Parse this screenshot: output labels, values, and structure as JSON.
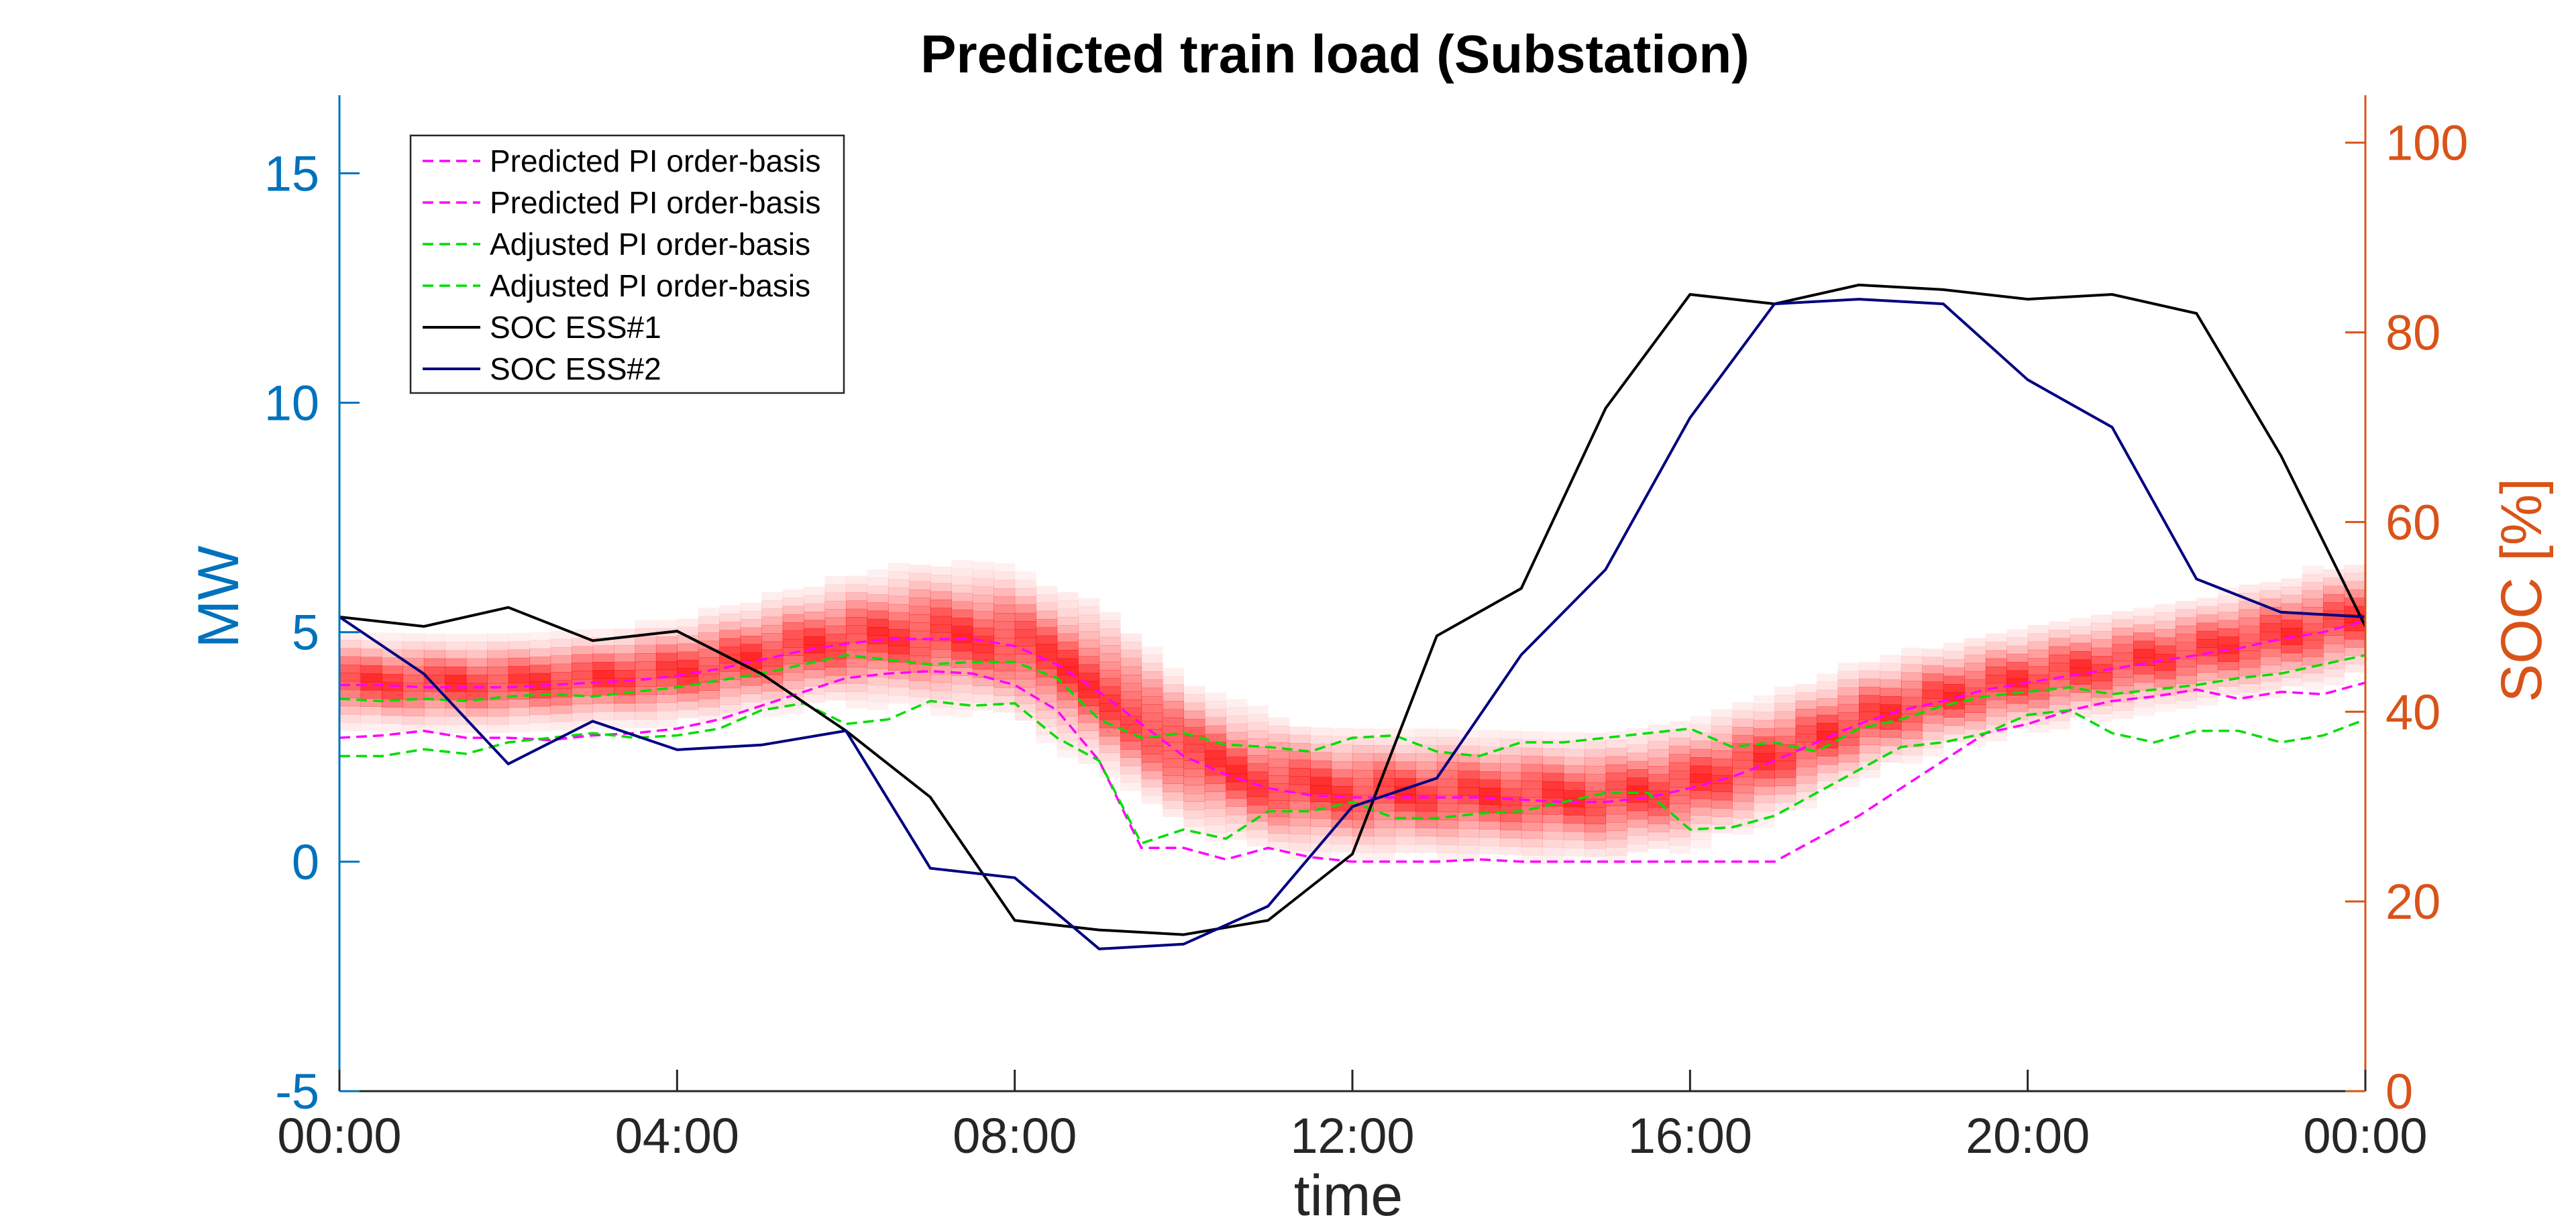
{
  "chart_data": {
    "type": "line",
    "title": "Predicted train load (Substation)",
    "xlabel": "time",
    "ylabel_left": "MW",
    "ylabel_right": "SOC [%]",
    "x_ticks": [
      "00:00",
      "04:00",
      "08:00",
      "12:00",
      "16:00",
      "20:00",
      "00:00"
    ],
    "x_range_hours": [
      0,
      24
    ],
    "ylim_left": [
      -5,
      16.7
    ],
    "yticks_left": [
      -5,
      0,
      5,
      10,
      15
    ],
    "ylim_right": [
      0,
      105
    ],
    "yticks_right": [
      0,
      20,
      40,
      60,
      80,
      100
    ],
    "grid": false,
    "legend_position": "top-left",
    "colors": {
      "left_axis": "#0072BD",
      "right_axis": "#D95319",
      "predicted": "#FF00FF",
      "adjusted": "#00DD00",
      "soc1": "#000000",
      "soc2": "#000080",
      "band": "#FF0000"
    },
    "series": [
      {
        "name": "Predicted PI order-basis",
        "axis": "left",
        "style": "dashed",
        "color": "#FF00FF",
        "x": [
          0,
          0.5,
          1,
          1.5,
          2,
          2.5,
          3,
          3.5,
          4,
          4.5,
          5,
          5.5,
          6,
          6.5,
          7,
          7.5,
          8,
          8.5,
          9,
          9.5,
          10,
          10.5,
          11,
          11.5,
          12,
          12.5,
          13,
          13.5,
          14,
          14.5,
          15,
          15.5,
          16,
          16.5,
          17,
          17.5,
          18,
          18.5,
          19,
          19.5,
          20,
          20.5,
          21,
          21.5,
          22,
          22.5,
          23,
          23.5,
          24
        ],
        "y": [
          3.85,
          3.85,
          3.8,
          3.8,
          3.8,
          3.85,
          3.9,
          3.95,
          4.05,
          4.2,
          4.4,
          4.6,
          4.75,
          4.85,
          4.85,
          4.85,
          4.7,
          4.3,
          3.7,
          3.0,
          2.3,
          1.9,
          1.6,
          1.45,
          1.4,
          1.4,
          1.4,
          1.4,
          1.35,
          1.3,
          1.3,
          1.4,
          1.6,
          1.85,
          2.2,
          2.6,
          3.0,
          3.3,
          3.5,
          3.75,
          3.9,
          4.05,
          4.2,
          4.35,
          4.5,
          4.65,
          4.85,
          5.0,
          5.25
        ]
      },
      {
        "name": "Predicted PI order-basis",
        "axis": "left",
        "style": "dashed",
        "color": "#FF00FF",
        "x": [
          0,
          0.5,
          1,
          1.5,
          2,
          2.5,
          3,
          3.5,
          4,
          4.5,
          5,
          5.5,
          6,
          6.5,
          7,
          7.5,
          8,
          8.5,
          9,
          9.5,
          10,
          10.5,
          11,
          11.5,
          12,
          12.5,
          13,
          13.5,
          14,
          14.5,
          15,
          15.5,
          16,
          16.5,
          17,
          17.5,
          18,
          18.5,
          19,
          19.5,
          20,
          20.5,
          21,
          21.5,
          22,
          22.5,
          23,
          23.5,
          24
        ],
        "y": [
          2.7,
          2.75,
          2.85,
          2.7,
          2.7,
          2.65,
          2.75,
          2.8,
          2.9,
          3.1,
          3.4,
          3.7,
          4.0,
          4.1,
          4.15,
          4.1,
          3.85,
          3.3,
          2.2,
          0.3,
          0.3,
          0.05,
          0.3,
          0.1,
          0.0,
          0.0,
          0.0,
          0.05,
          0.0,
          0.0,
          0.0,
          0.0,
          0.0,
          0.0,
          0.0,
          0.5,
          1.0,
          1.6,
          2.2,
          2.8,
          3.0,
          3.3,
          3.5,
          3.6,
          3.75,
          3.55,
          3.7,
          3.65,
          3.9
        ]
      },
      {
        "name": "Adjusted PI order-basis",
        "axis": "left",
        "style": "dashed",
        "color": "#00DD00",
        "x": [
          0,
          0.5,
          1,
          1.5,
          2,
          2.5,
          3,
          3.5,
          4,
          4.5,
          5,
          5.5,
          6,
          6.5,
          7,
          7.5,
          8,
          8.5,
          9,
          9.5,
          10,
          10.5,
          11,
          11.5,
          12,
          12.5,
          13,
          13.5,
          14,
          14.5,
          15,
          15.5,
          16,
          16.5,
          17,
          17.5,
          18,
          18.5,
          19,
          19.5,
          20,
          20.5,
          21,
          21.5,
          22,
          22.5,
          23,
          23.5,
          24
        ],
        "y": [
          3.55,
          3.5,
          3.55,
          3.5,
          3.6,
          3.65,
          3.6,
          3.7,
          3.8,
          3.95,
          4.1,
          4.3,
          4.5,
          4.4,
          4.3,
          4.35,
          4.35,
          4.0,
          3.1,
          2.7,
          2.8,
          2.55,
          2.5,
          2.4,
          2.7,
          2.75,
          2.4,
          2.3,
          2.6,
          2.6,
          2.7,
          2.8,
          2.9,
          2.5,
          2.6,
          2.4,
          2.9,
          3.1,
          3.4,
          3.6,
          3.7,
          3.8,
          3.65,
          3.75,
          3.85,
          4.0,
          4.1,
          4.3,
          4.5
        ]
      },
      {
        "name": "Adjusted PI order-basis",
        "axis": "left",
        "style": "dashed",
        "color": "#00DD00",
        "x": [
          0,
          0.5,
          1,
          1.5,
          2,
          2.5,
          3,
          3.5,
          4,
          4.5,
          5,
          5.5,
          6,
          6.5,
          7,
          7.5,
          8,
          8.5,
          9,
          9.5,
          10,
          10.5,
          11,
          11.5,
          12,
          12.5,
          13,
          13.5,
          14,
          14.5,
          15,
          15.5,
          16,
          16.5,
          17,
          17.5,
          18,
          18.5,
          19,
          19.5,
          20,
          20.5,
          21,
          21.5,
          22,
          22.5,
          23,
          23.5,
          24
        ],
        "y": [
          2.3,
          2.3,
          2.45,
          2.35,
          2.6,
          2.7,
          2.8,
          2.7,
          2.75,
          2.9,
          3.3,
          3.45,
          3.0,
          3.1,
          3.5,
          3.4,
          3.45,
          2.7,
          2.2,
          0.4,
          0.7,
          0.5,
          1.1,
          1.1,
          1.3,
          0.95,
          0.95,
          1.05,
          1.1,
          1.3,
          1.5,
          1.5,
          0.7,
          0.75,
          1.0,
          1.5,
          2.0,
          2.5,
          2.6,
          2.8,
          3.2,
          3.3,
          2.8,
          2.6,
          2.85,
          2.85,
          2.6,
          2.75,
          3.1
        ]
      },
      {
        "name": "SOC ESS#1",
        "axis": "right",
        "style": "solid",
        "color": "#000000",
        "x": [
          0,
          1,
          2,
          3,
          4,
          5,
          6,
          7,
          8,
          9,
          10,
          11,
          12,
          13,
          14,
          15,
          16,
          17,
          18,
          19,
          20,
          21,
          22,
          23,
          24
        ],
        "y": [
          50,
          49,
          51,
          47.5,
          48.5,
          44,
          38,
          31,
          18,
          17,
          16.5,
          18,
          25,
          48,
          53,
          72,
          84,
          83,
          85,
          84.5,
          83.5,
          84,
          82,
          67,
          49
        ]
      },
      {
        "name": "SOC ESS#2",
        "axis": "right",
        "style": "solid",
        "color": "#000080",
        "x": [
          0,
          1,
          2,
          3,
          4,
          5,
          6,
          7,
          8,
          9,
          10,
          11,
          12,
          13,
          14,
          15,
          16,
          17,
          18,
          19,
          20,
          21,
          22,
          23,
          24
        ],
        "y": [
          50,
          44,
          34.5,
          39,
          36,
          36.5,
          38,
          23.5,
          22.5,
          15,
          15.5,
          19.5,
          30,
          33,
          46,
          55,
          71,
          83,
          83.5,
          83,
          75,
          70,
          54,
          50.5,
          50
        ]
      }
    ],
    "legend": [
      "Predicted PI order-basis",
      "Predicted PI order-basis",
      "Adjusted PI order-basis",
      "Adjusted PI order-basis",
      "SOC ESS#1",
      "SOC ESS#2"
    ],
    "heatmap_band": {
      "axis": "left",
      "color": "#FF0000",
      "x": [
        0,
        1,
        2,
        3,
        4,
        5,
        6,
        7,
        8,
        9,
        10,
        11,
        12,
        13,
        14,
        15,
        16,
        17,
        18,
        19,
        20,
        21,
        22,
        23,
        24
      ],
      "center": [
        3.85,
        3.8,
        3.8,
        3.9,
        4.05,
        4.4,
        4.75,
        4.85,
        4.7,
        3.7,
        2.3,
        1.6,
        1.4,
        1.4,
        1.35,
        1.3,
        1.6,
        2.2,
        3.0,
        3.5,
        3.9,
        4.2,
        4.5,
        4.85,
        5.25
      ],
      "spread": [
        0.45,
        0.45,
        0.45,
        0.45,
        0.5,
        0.55,
        0.6,
        0.7,
        0.7,
        0.8,
        0.7,
        0.65,
        0.6,
        0.6,
        0.6,
        0.6,
        0.6,
        0.6,
        0.55,
        0.5,
        0.5,
        0.5,
        0.5,
        0.55,
        0.55
      ],
      "max_intensity": 1.0
    }
  }
}
